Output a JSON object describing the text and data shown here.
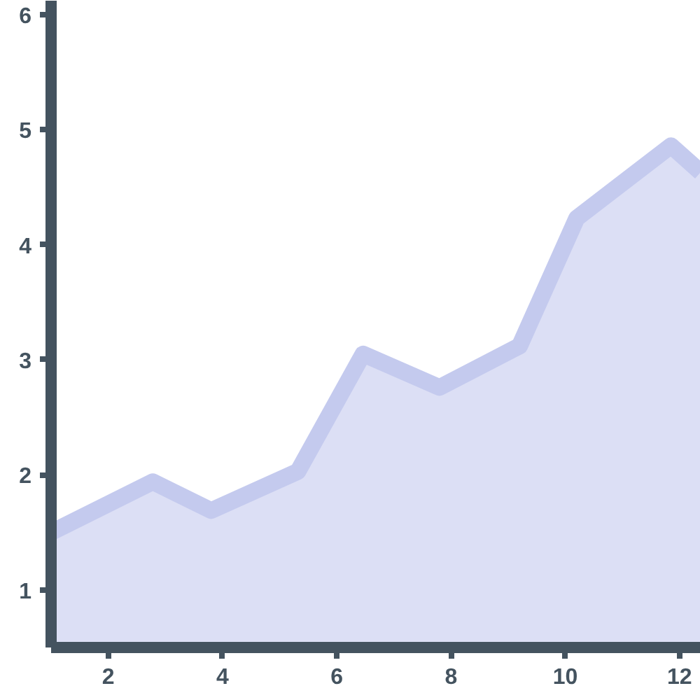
{
  "chart_data": {
    "type": "area",
    "x": [
      1,
      2.78,
      3.8,
      5.32,
      6.46,
      7.8,
      9.2,
      10.2,
      11.85,
      12.37
    ],
    "series": [
      {
        "color": "#c4caee",
        "values": [
          1.5,
          1.94,
          1.69,
          2.03,
          3.05,
          2.76,
          3.12,
          4.23,
          4.86,
          4.63
        ]
      }
    ],
    "xlim": [
      1,
      12.37
    ],
    "ylim": [
      0.5,
      6.12
    ],
    "xticks": [
      2,
      4,
      6,
      8,
      10,
      12
    ],
    "yticks": [
      1,
      2,
      3,
      4,
      5,
      6
    ],
    "grid": false
  }
}
